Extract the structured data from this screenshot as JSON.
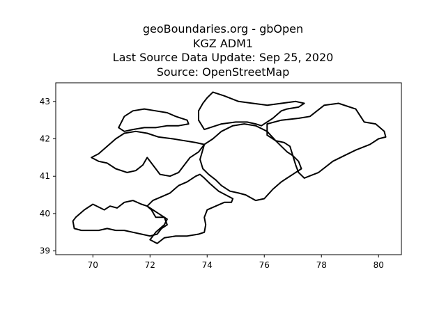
{
  "title": {
    "line1": "geoBoundaries.org - gbOpen",
    "line2": "KGZ ADM1",
    "line3": "Last Source Data Update: Sep 25, 2020",
    "line4": "Source: OpenStreetMap"
  },
  "chart_data": {
    "type": "map",
    "xlim": [
      68.7,
      80.8
    ],
    "ylim": [
      38.9,
      43.5
    ],
    "xticks": [
      70,
      72,
      74,
      76,
      78,
      80
    ],
    "yticks": [
      39,
      40,
      41,
      42,
      43
    ],
    "grid": false,
    "regions": [
      {
        "name": "",
        "points": [
          [
            69.4,
            39.9
          ],
          [
            69.7,
            40.1
          ],
          [
            70.0,
            40.25
          ],
          [
            70.4,
            40.1
          ],
          [
            70.6,
            40.2
          ],
          [
            70.85,
            40.15
          ],
          [
            71.1,
            40.3
          ],
          [
            71.4,
            40.35
          ],
          [
            71.7,
            40.25
          ],
          [
            71.9,
            40.2
          ],
          [
            72.05,
            40.1
          ],
          [
            72.2,
            39.9
          ],
          [
            72.5,
            39.9
          ],
          [
            72.6,
            39.7
          ],
          [
            72.4,
            39.6
          ],
          [
            72.25,
            39.45
          ],
          [
            72.0,
            39.4
          ],
          [
            71.7,
            39.45
          ],
          [
            71.4,
            39.5
          ],
          [
            71.1,
            39.55
          ],
          [
            70.8,
            39.55
          ],
          [
            70.5,
            39.6
          ],
          [
            70.2,
            39.55
          ],
          [
            69.9,
            39.55
          ],
          [
            69.6,
            39.55
          ],
          [
            69.35,
            39.6
          ],
          [
            69.3,
            39.8
          ]
        ]
      },
      {
        "name": "",
        "points": [
          [
            71.9,
            40.2
          ],
          [
            72.1,
            40.35
          ],
          [
            72.4,
            40.45
          ],
          [
            72.7,
            40.55
          ],
          [
            73.0,
            40.75
          ],
          [
            73.3,
            40.85
          ],
          [
            73.6,
            41.0
          ],
          [
            73.75,
            41.05
          ],
          [
            73.9,
            40.95
          ],
          [
            74.1,
            40.8
          ],
          [
            74.4,
            40.6
          ],
          [
            74.9,
            40.4
          ],
          [
            74.85,
            40.3
          ],
          [
            74.6,
            40.3
          ],
          [
            74.3,
            40.2
          ],
          [
            74.0,
            40.1
          ],
          [
            73.9,
            39.9
          ],
          [
            73.95,
            39.7
          ],
          [
            73.9,
            39.5
          ],
          [
            73.7,
            39.45
          ],
          [
            73.3,
            39.4
          ],
          [
            72.9,
            39.4
          ],
          [
            72.5,
            39.35
          ],
          [
            72.25,
            39.2
          ],
          [
            72.0,
            39.3
          ],
          [
            72.2,
            39.5
          ],
          [
            72.5,
            39.7
          ],
          [
            72.6,
            39.85
          ],
          [
            72.3,
            40.0
          ],
          [
            72.1,
            40.1
          ]
        ]
      },
      {
        "name": "",
        "points": [
          [
            69.95,
            41.5
          ],
          [
            70.2,
            41.6
          ],
          [
            70.5,
            41.8
          ],
          [
            70.8,
            42.0
          ],
          [
            71.1,
            42.15
          ],
          [
            71.5,
            42.2
          ],
          [
            71.9,
            42.15
          ],
          [
            72.3,
            42.05
          ],
          [
            72.8,
            42.0
          ],
          [
            73.2,
            41.95
          ],
          [
            73.6,
            41.9
          ],
          [
            73.9,
            41.85
          ],
          [
            73.7,
            41.65
          ],
          [
            73.4,
            41.5
          ],
          [
            73.2,
            41.3
          ],
          [
            73.0,
            41.1
          ],
          [
            72.7,
            41.0
          ],
          [
            72.35,
            41.05
          ],
          [
            72.1,
            41.3
          ],
          [
            71.9,
            41.5
          ],
          [
            71.75,
            41.3
          ],
          [
            71.5,
            41.15
          ],
          [
            71.2,
            41.1
          ],
          [
            70.8,
            41.2
          ],
          [
            70.5,
            41.35
          ],
          [
            70.2,
            41.4
          ]
        ]
      },
      {
        "name": "",
        "points": [
          [
            70.9,
            42.3
          ],
          [
            71.1,
            42.6
          ],
          [
            71.4,
            42.75
          ],
          [
            71.8,
            42.8
          ],
          [
            72.2,
            42.75
          ],
          [
            72.6,
            42.7
          ],
          [
            72.9,
            42.6
          ],
          [
            73.3,
            42.5
          ],
          [
            73.35,
            42.4
          ],
          [
            73.0,
            42.35
          ],
          [
            72.6,
            42.35
          ],
          [
            72.2,
            42.3
          ],
          [
            71.8,
            42.3
          ],
          [
            71.4,
            42.25
          ],
          [
            71.1,
            42.2
          ]
        ]
      },
      {
        "name": "",
        "points": [
          [
            73.9,
            42.25
          ],
          [
            74.5,
            42.4
          ],
          [
            75.0,
            42.45
          ],
          [
            75.4,
            42.45
          ],
          [
            75.7,
            42.4
          ],
          [
            75.9,
            42.35
          ],
          [
            76.3,
            42.55
          ],
          [
            76.6,
            42.75
          ],
          [
            76.8,
            42.8
          ],
          [
            77.2,
            42.85
          ],
          [
            77.4,
            42.95
          ],
          [
            77.1,
            43.0
          ],
          [
            76.6,
            42.95
          ],
          [
            76.1,
            42.9
          ],
          [
            75.6,
            42.95
          ],
          [
            75.1,
            43.0
          ],
          [
            74.6,
            43.15
          ],
          [
            74.2,
            43.25
          ],
          [
            74.0,
            43.1
          ],
          [
            73.85,
            42.95
          ],
          [
            73.7,
            42.75
          ],
          [
            73.7,
            42.5
          ]
        ]
      },
      {
        "name": "",
        "points": [
          [
            73.9,
            41.85
          ],
          [
            74.2,
            42.0
          ],
          [
            74.5,
            42.2
          ],
          [
            74.9,
            42.35
          ],
          [
            75.3,
            42.4
          ],
          [
            75.7,
            42.35
          ],
          [
            76.1,
            42.2
          ],
          [
            76.4,
            41.95
          ],
          [
            76.6,
            41.8
          ],
          [
            76.8,
            41.65
          ],
          [
            77.0,
            41.55
          ],
          [
            77.2,
            41.4
          ],
          [
            77.3,
            41.2
          ],
          [
            77.0,
            41.05
          ],
          [
            76.8,
            40.95
          ],
          [
            76.6,
            40.85
          ],
          [
            76.3,
            40.65
          ],
          [
            76.0,
            40.4
          ],
          [
            75.7,
            40.35
          ],
          [
            75.35,
            40.5
          ],
          [
            75.1,
            40.55
          ],
          [
            74.8,
            40.6
          ],
          [
            74.5,
            40.75
          ],
          [
            74.3,
            40.9
          ],
          [
            74.05,
            41.05
          ],
          [
            73.85,
            41.2
          ],
          [
            73.75,
            41.45
          ]
        ]
      },
      {
        "name": "",
        "points": [
          [
            76.1,
            42.4
          ],
          [
            76.6,
            42.5
          ],
          [
            77.2,
            42.55
          ],
          [
            77.6,
            42.6
          ],
          [
            78.1,
            42.9
          ],
          [
            78.6,
            42.95
          ],
          [
            79.2,
            42.8
          ],
          [
            79.5,
            42.45
          ],
          [
            79.9,
            42.4
          ],
          [
            80.2,
            42.2
          ],
          [
            80.25,
            42.05
          ],
          [
            80.0,
            42.0
          ],
          [
            79.7,
            41.85
          ],
          [
            79.2,
            41.7
          ],
          [
            78.8,
            41.55
          ],
          [
            78.4,
            41.4
          ],
          [
            77.9,
            41.1
          ],
          [
            77.4,
            40.95
          ],
          [
            77.2,
            41.1
          ],
          [
            77.1,
            41.3
          ],
          [
            77.0,
            41.55
          ],
          [
            76.9,
            41.8
          ],
          [
            76.7,
            41.9
          ],
          [
            76.4,
            41.95
          ],
          [
            76.1,
            42.1
          ]
        ]
      }
    ]
  }
}
